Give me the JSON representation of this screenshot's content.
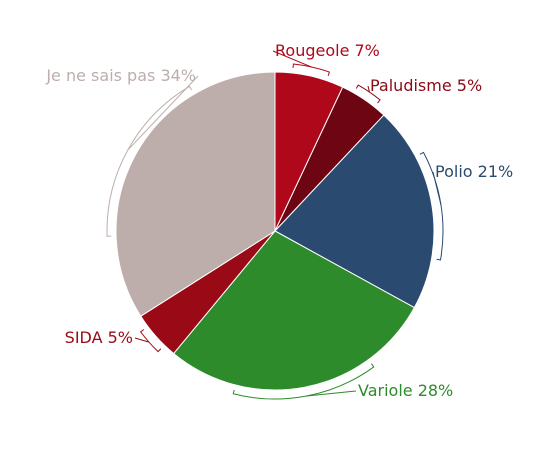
{
  "chart_data": {
    "type": "pie",
    "slices": [
      {
        "label": "Rougeole",
        "value": 7,
        "text": "Rougeole 7%",
        "color": "#b0081b"
      },
      {
        "label": "Paludisme",
        "value": 5,
        "text": "Paludisme 5%",
        "color": "#6d0612"
      },
      {
        "label": "Polio",
        "value": 21,
        "text": "Polio 21%",
        "color": "#2a4a6f"
      },
      {
        "label": "Variole",
        "value": 28,
        "text": "Variole 28%",
        "color": "#2e8b2b"
      },
      {
        "label": "SIDA",
        "value": 5,
        "text": "SIDA 5%",
        "color": "#9a0a16"
      },
      {
        "label": "Je ne sais pas",
        "value": 34,
        "text": "Je ne sais pas 34%",
        "color": "#bdaeac"
      }
    ],
    "label_colors": [
      "#b0081b",
      "#8a0a16",
      "#2a4a6f",
      "#2e8b2b",
      "#9a0a16",
      "#bdaeac"
    ],
    "start": "top",
    "direction": "clockwise",
    "legend": "none"
  }
}
